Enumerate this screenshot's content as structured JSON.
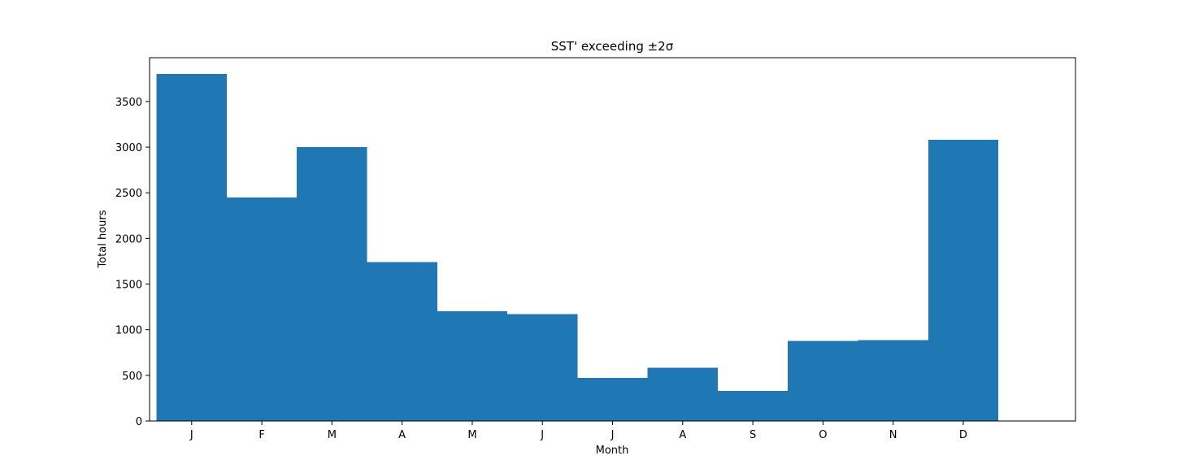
{
  "chart_data": {
    "type": "bar",
    "title": "SST' exceeding ±2σ",
    "xlabel": "Month",
    "ylabel": "Total hours",
    "categories": [
      "J",
      "F",
      "M",
      "A",
      "M",
      "J",
      "J",
      "A",
      "S",
      "O",
      "N",
      "D"
    ],
    "values": [
      3800,
      2450,
      3000,
      1740,
      1200,
      1170,
      470,
      585,
      330,
      875,
      885,
      3080
    ],
    "yticks": [
      0,
      500,
      1000,
      1500,
      2000,
      2500,
      3000,
      3500
    ],
    "ylim": [
      0,
      3980
    ],
    "xlim": [
      -0.6,
      12.6
    ],
    "bar_color": "#1f77b4",
    "grid": false,
    "legend": "none"
  }
}
